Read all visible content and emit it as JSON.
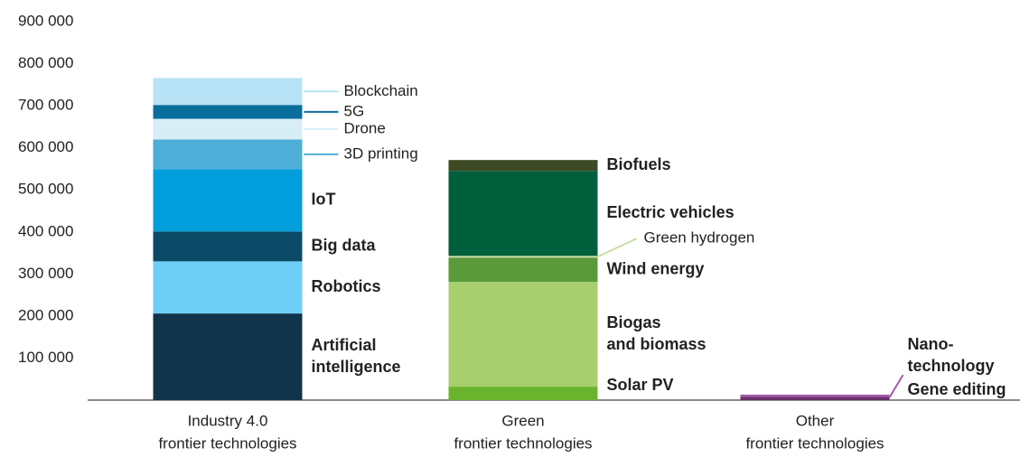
{
  "chart_data": {
    "type": "stacked_bar",
    "categories": [
      [
        "Industry 4.0",
        "frontier technologies"
      ],
      [
        "Green",
        "frontier technologies"
      ],
      [
        "Other",
        "frontier technologies"
      ]
    ],
    "series": [
      {
        "name": "Artificial intelligence",
        "color": "#12344a",
        "values": [
          206000,
          null,
          null
        ]
      },
      {
        "name": "Robotics",
        "color": "#6ecff6",
        "values": [
          124000,
          null,
          null
        ]
      },
      {
        "name": "Big data",
        "color": "#0a4a66",
        "values": [
          71000,
          null,
          null
        ]
      },
      {
        "name": "IoT",
        "color": "#009edb",
        "values": [
          148000,
          null,
          null
        ]
      },
      {
        "name": "3D printing",
        "color": "#4eaed8",
        "values": [
          71000,
          null,
          null
        ]
      },
      {
        "name": "Drone",
        "color": "#d8eef7",
        "values": [
          49000,
          null,
          null
        ]
      },
      {
        "name": "5G",
        "color": "#0a6e9c",
        "values": [
          33000,
          null,
          null
        ]
      },
      {
        "name": "Blockchain",
        "color": "#b8e2f5",
        "values": [
          64000,
          null,
          null
        ]
      },
      {
        "name": "Solar PV",
        "color": "#6ab42d",
        "values": [
          null,
          32000,
          null
        ]
      },
      {
        "name": "Biogas and biomass",
        "color": "#a8cf6e",
        "values": [
          null,
          249000,
          null
        ]
      },
      {
        "name": "Wind energy",
        "color": "#5a9a3a",
        "values": [
          null,
          58000,
          null
        ]
      },
      {
        "name": "Green hydrogen",
        "color": "#c7e0a0",
        "values": [
          null,
          4000,
          null
        ]
      },
      {
        "name": "Electric vehicles",
        "color": "#005f3c",
        "values": [
          null,
          202000,
          null
        ]
      },
      {
        "name": "Biofuels",
        "color": "#3d4a23",
        "values": [
          null,
          26000,
          null
        ]
      },
      {
        "name": "Gene editing",
        "color": "#6a2e6a",
        "values": [
          null,
          null,
          8000
        ]
      },
      {
        "name": "Nano-technology",
        "color": "#a35aa9",
        "values": [
          null,
          null,
          5000
        ]
      }
    ],
    "ylim": [
      0,
      900000
    ],
    "yticks": [
      {
        "value": 100000,
        "label": "100 000"
      },
      {
        "value": 200000,
        "label": "200 000"
      },
      {
        "value": 300000,
        "label": "300 000"
      },
      {
        "value": 400000,
        "label": "400 000"
      },
      {
        "value": 500000,
        "label": "500 000"
      },
      {
        "value": 600000,
        "label": "600 000"
      },
      {
        "value": 700000,
        "label": "700 000"
      },
      {
        "value": 800000,
        "label": "800 000"
      },
      {
        "value": 900000,
        "label": "900 000"
      }
    ]
  }
}
